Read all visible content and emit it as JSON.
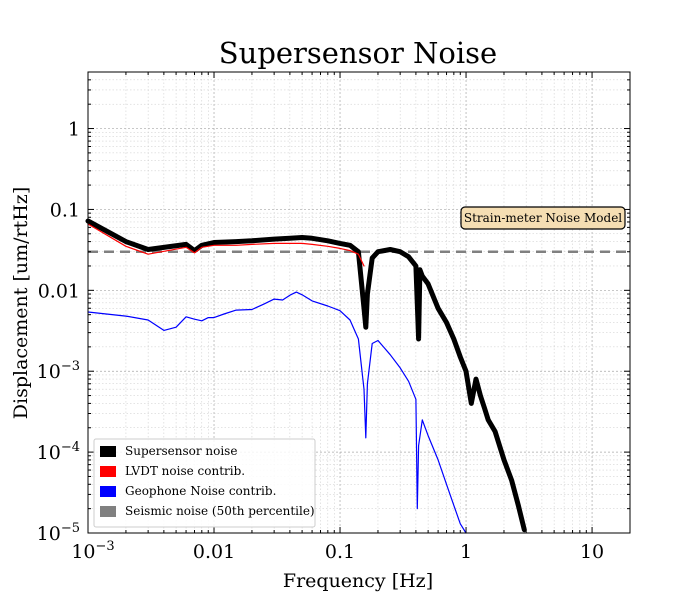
{
  "chart_data": {
    "type": "line",
    "title": "Supersensor Noise",
    "xlabel": "Frequency [Hz]",
    "ylabel": "Displacement [um/rtHz]",
    "xscale": "log",
    "yscale": "log",
    "xlim": [
      0.001,
      20
    ],
    "ylim": [
      1e-05,
      5
    ],
    "grid": "on (major and minor)",
    "legend_position": "lower-left",
    "x_tick_labels": [
      {
        "value": 0.001,
        "label": "10",
        "exp": "−3"
      },
      {
        "value": 0.01,
        "label": "0.01"
      },
      {
        "value": 0.1,
        "label": "0.1"
      },
      {
        "value": 1,
        "label": "1"
      },
      {
        "value": 10,
        "label": "10"
      }
    ],
    "y_tick_labels": [
      {
        "value": 1,
        "label": "1"
      },
      {
        "value": 0.1,
        "label": "0.1"
      },
      {
        "value": 0.01,
        "label": "0.01"
      },
      {
        "value": 0.001,
        "label": "10",
        "exp": "−3"
      },
      {
        "value": 0.0001,
        "label": "10",
        "exp": "−4"
      },
      {
        "value": 1e-05,
        "label": "10",
        "exp": "−5"
      }
    ],
    "series": [
      {
        "name": "Supersensor noise",
        "color": "#000000",
        "style": "thick",
        "x": [
          0.001,
          0.002,
          0.003,
          0.006,
          0.007,
          0.008,
          0.01,
          0.015,
          0.02,
          0.03,
          0.04,
          0.05,
          0.06,
          0.08,
          0.1,
          0.12,
          0.14,
          0.155,
          0.16,
          0.165,
          0.18,
          0.2,
          0.25,
          0.3,
          0.35,
          0.4,
          0.42,
          0.43,
          0.45,
          0.5,
          0.6,
          0.7,
          0.8,
          0.9,
          1.0,
          1.1,
          1.2,
          1.3,
          1.4,
          1.5,
          1.7,
          2.0,
          2.3,
          2.6,
          2.9
        ],
        "values": [
          0.072,
          0.04,
          0.032,
          0.037,
          0.031,
          0.036,
          0.039,
          0.04,
          0.041,
          0.043,
          0.044,
          0.045,
          0.044,
          0.041,
          0.038,
          0.036,
          0.03,
          0.006,
          0.0035,
          0.009,
          0.025,
          0.03,
          0.032,
          0.03,
          0.026,
          0.02,
          0.0025,
          0.018,
          0.015,
          0.012,
          0.006,
          0.004,
          0.0025,
          0.0015,
          0.001,
          0.0004,
          0.0008,
          0.0005,
          0.00035,
          0.00025,
          0.00018,
          8e-05,
          4.5e-05,
          2.2e-05,
          1.1e-05
        ]
      },
      {
        "name": "LVDT noise contrib.",
        "color": "#ff0000",
        "style": "thin",
        "x": [
          0.001,
          0.002,
          0.003,
          0.006,
          0.007,
          0.008,
          0.01,
          0.015,
          0.02,
          0.03,
          0.04,
          0.05,
          0.06,
          0.08,
          0.1,
          0.12,
          0.14,
          0.155
        ],
        "values": [
          0.066,
          0.035,
          0.028,
          0.034,
          0.029,
          0.034,
          0.036,
          0.036,
          0.037,
          0.038,
          0.038,
          0.038,
          0.037,
          0.035,
          0.033,
          0.031,
          0.028,
          0.02
        ]
      },
      {
        "name": "Geophone Noise contrib.",
        "color": "#0000ff",
        "style": "thin",
        "x": [
          0.001,
          0.002,
          0.003,
          0.004,
          0.005,
          0.006,
          0.007,
          0.008,
          0.009,
          0.01,
          0.012,
          0.015,
          0.02,
          0.025,
          0.03,
          0.035,
          0.04,
          0.045,
          0.05,
          0.06,
          0.08,
          0.1,
          0.12,
          0.14,
          0.155,
          0.16,
          0.165,
          0.18,
          0.2,
          0.25,
          0.3,
          0.35,
          0.4,
          0.41,
          0.42,
          0.45,
          0.5,
          0.6,
          0.7,
          0.8,
          0.9,
          1.0
        ],
        "values": [
          0.0054,
          0.0048,
          0.0043,
          0.0032,
          0.0035,
          0.0047,
          0.0044,
          0.0042,
          0.0046,
          0.0046,
          0.0051,
          0.0057,
          0.0058,
          0.0068,
          0.0078,
          0.0076,
          0.0087,
          0.0095,
          0.0088,
          0.0074,
          0.0064,
          0.0056,
          0.0043,
          0.0025,
          0.0006,
          0.00015,
          0.0007,
          0.0022,
          0.0024,
          0.0016,
          0.0011,
          0.00075,
          0.00045,
          2e-05,
          0.00012,
          0.00025,
          0.00016,
          8e-05,
          4e-05,
          2.2e-05,
          1.3e-05,
          1e-05
        ]
      },
      {
        "name": "Seismic noise (50th percentile)",
        "color": "#808080",
        "style": "dashed",
        "x": [
          0.001,
          20
        ],
        "values": [
          0.03,
          0.03
        ]
      }
    ],
    "annotations": [
      {
        "text": "Strain-meter Noise Model",
        "x": 10,
        "y": 0.08
      }
    ]
  }
}
